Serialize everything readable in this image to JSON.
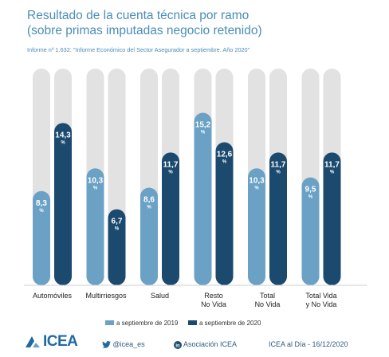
{
  "title_line1": "Resultado de la cuenta técnica por ramo",
  "title_line2": "(sobre primas imputadas negocio retenido)",
  "subtitle": "Informe nº 1.632: \"Informe Económico del Sector Asegurador a septiembre. Año 2020\"",
  "colors": {
    "series_2019": "#6aa1c5",
    "series_2020": "#1b4a6e",
    "track": "#e2e2e2",
    "title": "#4a8db7"
  },
  "chart_data": {
    "type": "bar",
    "title": "Resultado de la cuenta técnica por ramo (sobre primas imputadas negocio retenido)",
    "categories": [
      [
        "Automóviles"
      ],
      [
        "Multirriesgos"
      ],
      [
        "Salud"
      ],
      [
        "Resto",
        "No Vida"
      ],
      [
        "Total",
        "No Vida"
      ],
      [
        "Total Vida",
        "y No Vida"
      ]
    ],
    "series": [
      {
        "name": "a septiembre de 2019",
        "values": [
          8.3,
          10.3,
          8.6,
          15.2,
          10.3,
          9.5
        ],
        "labels": [
          "8,3",
          "10,3",
          "8,6",
          "15,2",
          "10,3",
          "9,5"
        ]
      },
      {
        "name": "a septiembre de 2020",
        "values": [
          14.3,
          6.7,
          11.7,
          12.6,
          11.7,
          11.7
        ],
        "labels": [
          "14,3",
          "6,7",
          "11,7",
          "12,6",
          "11,7",
          "11,7"
        ]
      }
    ],
    "unit_label": "%",
    "ylim": [
      0,
      17.2
    ],
    "grid": false,
    "legend": "bottom-right"
  },
  "footer": {
    "logo_text": "ICEA",
    "twitter": "@icea_es",
    "linkedin": "Asociación ICEA",
    "date": "ICEA al Día - 16/12/2020"
  }
}
